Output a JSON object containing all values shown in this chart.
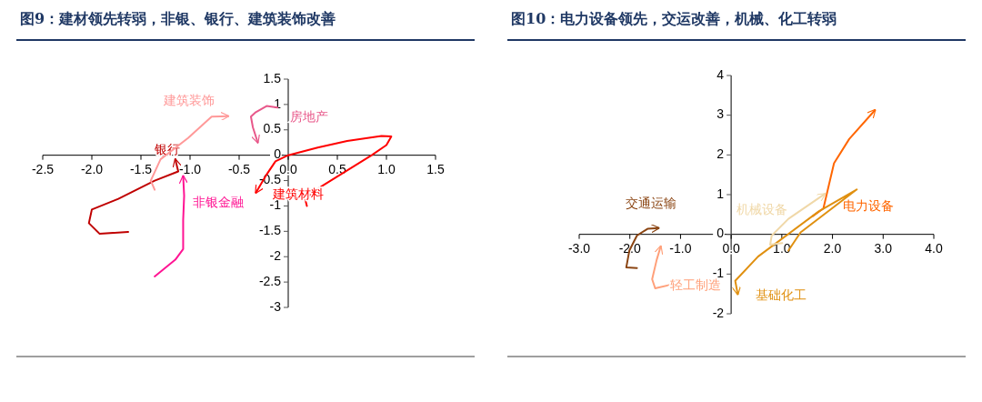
{
  "chart_data": [
    {
      "type": "line",
      "title": "图9：建材领先转弱，非银、银行、建筑装饰改善",
      "marker": "none",
      "legend": false,
      "grid": false,
      "xlim": [
        -2.5,
        1.5
      ],
      "ylim": [
        -3,
        1.5
      ],
      "xticks": [
        -2.5,
        {
          "value": -2,
          "label": "-2.0"
        },
        -1.5,
        {
          "value": -1,
          "label": "-1.0"
        },
        -0.5,
        {
          "value": 0,
          "label": "0.0"
        },
        0.5,
        {
          "value": 1,
          "label": "1.0"
        },
        1.5
      ],
      "yticks": [
        -3,
        -2.5,
        -2,
        -1.5,
        -1,
        -0.5,
        0,
        0.5,
        1,
        1.5
      ],
      "series": [
        {
          "name": "建筑材料",
          "color": "#ff0000",
          "x": [
            0.19,
            0.17,
            0.35,
            0.6,
            0.85,
            1.0,
            1.05,
            0.95,
            0.6,
            0.3,
            0.0,
            -0.13,
            -0.22,
            -0.33
          ],
          "values": [
            -1.0,
            -0.85,
            -0.6,
            -0.3,
            0.0,
            0.2,
            0.37,
            0.38,
            0.28,
            0.15,
            0.0,
            -0.12,
            -0.38,
            -0.74
          ]
        },
        {
          "name": "银行",
          "color": "#c00000",
          "x": [
            -1.63,
            -1.92,
            -2.03,
            -2.0,
            -1.73,
            -1.36,
            -1.12,
            -1.15
          ],
          "values": [
            -1.51,
            -1.55,
            -1.34,
            -1.07,
            -0.86,
            -0.5,
            -0.32,
            -0.08
          ]
        },
        {
          "name": "非银金融",
          "color": "#ff1493",
          "x": [
            -1.36,
            -1.15,
            -1.07,
            -1.07,
            -1.06,
            -1.07
          ],
          "values": [
            -2.39,
            -2.06,
            -1.85,
            -1.28,
            -0.8,
            -0.41
          ]
        },
        {
          "name": "建筑装饰",
          "color": "#ff9999",
          "x": [
            -1.36,
            -1.4,
            -1.3,
            -1.02,
            -0.78,
            -0.61
          ],
          "values": [
            -0.68,
            -0.5,
            -0.08,
            0.34,
            0.76,
            0.77
          ]
        },
        {
          "name": "房地产",
          "color": "#e8588a",
          "x": [
            -0.11,
            -0.22,
            -0.33,
            -0.38,
            -0.36,
            -0.31
          ],
          "values": [
            0.94,
            0.97,
            0.85,
            0.76,
            0.55,
            0.25
          ]
        }
      ]
    },
    {
      "type": "line",
      "title": "图10：电力设备领先，交运改善，机械、化工转弱",
      "marker": "none",
      "legend": false,
      "grid": false,
      "xlim": [
        -3,
        4
      ],
      "ylim": [
        -2,
        4
      ],
      "xticks": [
        {
          "value": -3,
          "label": "-3.0"
        },
        {
          "value": -2,
          "label": "-2.0"
        },
        {
          "value": -1,
          "label": "-1.0"
        },
        {
          "value": 0,
          "label": "0.0"
        },
        {
          "value": 1,
          "label": "1.0"
        },
        {
          "value": 2,
          "label": "2.0"
        },
        {
          "value": 3,
          "label": "3.0"
        },
        {
          "value": 4,
          "label": "4.0"
        }
      ],
      "yticks": [
        -2,
        -1,
        0,
        1,
        2,
        3,
        4
      ],
      "series": [
        {
          "name": "电力设备",
          "color": "#ff6600",
          "x": [
            1.61,
            1.82,
            2.03,
            2.33,
            2.84
          ],
          "values": [
            0.46,
            0.65,
            1.79,
            2.4,
            3.13
          ]
        },
        {
          "name": "基础化工",
          "color": "#e09010",
          "x": [
            1.13,
            1.37,
            2.48,
            1.73,
            0.53,
            0.08,
            0.13
          ],
          "values": [
            -0.41,
            0.05,
            1.13,
            0.58,
            -0.56,
            -1.17,
            -1.51
          ]
        },
        {
          "name": "机械设备",
          "color": "#f0d8a8",
          "x": [
            1.01,
            0.77,
            0.8,
            1.13,
            1.85
          ],
          "values": [
            -0.22,
            -0.26,
            -0.03,
            0.39,
            1.02
          ]
        },
        {
          "name": "交通运输",
          "color": "#8b4513",
          "x": [
            -1.86,
            -2.07,
            -2.01,
            -1.86,
            -1.65,
            -1.43
          ],
          "values": [
            -0.85,
            -0.83,
            -0.41,
            -0.03,
            0.14,
            0.16
          ]
        },
        {
          "name": "轻工制造",
          "color": "#ffa07a",
          "x": [
            -1.2,
            -1.5,
            -1.56,
            -1.47,
            -1.39
          ],
          "values": [
            -1.27,
            -1.36,
            -1.13,
            -0.64,
            -0.3
          ]
        }
      ]
    }
  ]
}
